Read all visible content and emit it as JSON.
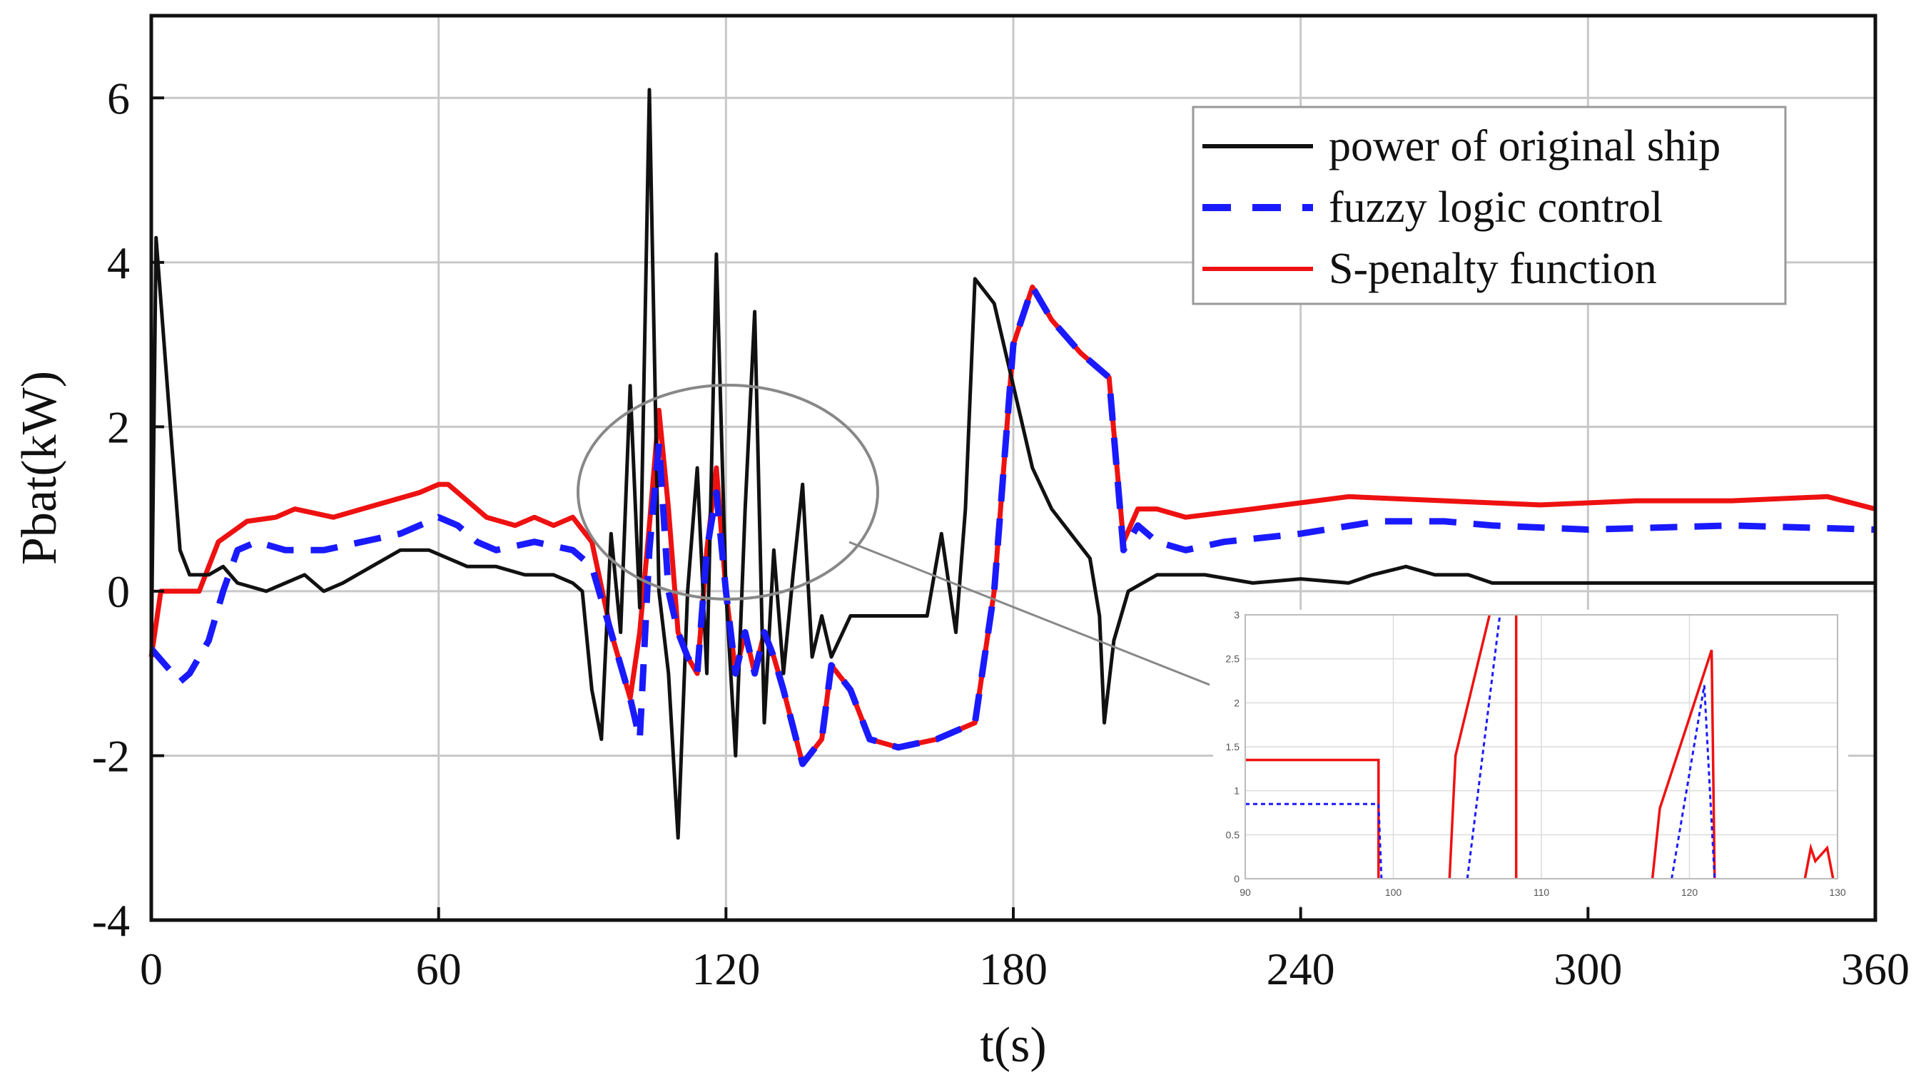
{
  "chart_data": [
    {
      "type": "line",
      "xlabel": "t(s)",
      "ylabel": "Pbat(kW)",
      "xlim": [
        0,
        360
      ],
      "ylim": [
        -4,
        7
      ],
      "xticks": [
        "0",
        "60",
        "120",
        "180",
        "240",
        "300",
        "360"
      ],
      "yticks": [
        "-4",
        "-2",
        "0",
        "2",
        "4",
        "6"
      ],
      "grid": true,
      "legend_position": "top-right",
      "series": [
        {
          "name": "power of original ship",
          "color": "#111111",
          "style": "solid",
          "points": [
            [
              0,
              -0.8
            ],
            [
              1,
              4.3
            ],
            [
              4,
              2.0
            ],
            [
              6,
              0.5
            ],
            [
              8,
              0.2
            ],
            [
              12,
              0.2
            ],
            [
              15,
              0.3
            ],
            [
              18,
              0.1
            ],
            [
              24,
              0.0
            ],
            [
              28,
              0.1
            ],
            [
              32,
              0.2
            ],
            [
              36,
              0.0
            ],
            [
              40,
              0.1
            ],
            [
              46,
              0.3
            ],
            [
              52,
              0.5
            ],
            [
              58,
              0.5
            ],
            [
              62,
              0.4
            ],
            [
              66,
              0.3
            ],
            [
              72,
              0.3
            ],
            [
              78,
              0.2
            ],
            [
              84,
              0.2
            ],
            [
              88,
              0.1
            ],
            [
              90,
              0.0
            ],
            [
              92,
              -1.2
            ],
            [
              94,
              -1.8
            ],
            [
              96,
              0.7
            ],
            [
              98,
              -0.5
            ],
            [
              100,
              2.5
            ],
            [
              102,
              -0.2
            ],
            [
              104,
              6.1
            ],
            [
              106,
              0.0
            ],
            [
              108,
              -1.0
            ],
            [
              110,
              -3.0
            ],
            [
              112,
              0.0
            ],
            [
              114,
              1.5
            ],
            [
              116,
              -1.0
            ],
            [
              118,
              4.1
            ],
            [
              120,
              0.0
            ],
            [
              122,
              -2.0
            ],
            [
              124,
              1.0
            ],
            [
              126,
              3.4
            ],
            [
              128,
              -1.6
            ],
            [
              130,
              0.5
            ],
            [
              132,
              -1.0
            ],
            [
              134,
              0.2
            ],
            [
              136,
              1.3
            ],
            [
              138,
              -0.8
            ],
            [
              140,
              -0.3
            ],
            [
              142,
              -0.8
            ],
            [
              146,
              -0.3
            ],
            [
              154,
              -0.3
            ],
            [
              162,
              -0.3
            ],
            [
              165,
              0.7
            ],
            [
              168,
              -0.5
            ],
            [
              170,
              1.0
            ],
            [
              172,
              3.8
            ],
            [
              176,
              3.5
            ],
            [
              180,
              2.5
            ],
            [
              184,
              1.5
            ],
            [
              188,
              1.0
            ],
            [
              192,
              0.7
            ],
            [
              196,
              0.4
            ],
            [
              198,
              -0.3
            ],
            [
              199,
              -1.6
            ],
            [
              201,
              -0.6
            ],
            [
              204,
              0.0
            ],
            [
              210,
              0.2
            ],
            [
              220,
              0.2
            ],
            [
              230,
              0.1
            ],
            [
              240,
              0.15
            ],
            [
              250,
              0.1
            ],
            [
              255,
              0.2
            ],
            [
              262,
              0.3
            ],
            [
              268,
              0.2
            ],
            [
              275,
              0.2
            ],
            [
              280,
              0.1
            ],
            [
              300,
              0.1
            ],
            [
              320,
              0.1
            ],
            [
              340,
              0.1
            ],
            [
              360,
              0.1
            ]
          ]
        },
        {
          "name": "fuzzy logic control",
          "color": "#1a1aff",
          "style": "dashed",
          "points": [
            [
              0,
              -0.7
            ],
            [
              3,
              -0.9
            ],
            [
              6,
              -1.1
            ],
            [
              8,
              -1.0
            ],
            [
              12,
              -0.6
            ],
            [
              15,
              0.0
            ],
            [
              18,
              0.5
            ],
            [
              22,
              0.6
            ],
            [
              28,
              0.5
            ],
            [
              36,
              0.5
            ],
            [
              44,
              0.6
            ],
            [
              52,
              0.7
            ],
            [
              60,
              0.9
            ],
            [
              64,
              0.8
            ],
            [
              68,
              0.6
            ],
            [
              72,
              0.5
            ],
            [
              80,
              0.6
            ],
            [
              88,
              0.5
            ],
            [
              92,
              0.3
            ],
            [
              96,
              -0.5
            ],
            [
              100,
              -1.3
            ],
            [
              102,
              -1.8
            ],
            [
              104,
              0.5
            ],
            [
              106,
              1.8
            ],
            [
              108,
              0.0
            ],
            [
              110,
              -0.5
            ],
            [
              112,
              -0.8
            ],
            [
              114,
              -1.0
            ],
            [
              116,
              0.5
            ],
            [
              118,
              1.2
            ],
            [
              120,
              0.0
            ],
            [
              122,
              -1.0
            ],
            [
              124,
              -0.5
            ],
            [
              126,
              -1.0
            ],
            [
              128,
              -0.5
            ],
            [
              130,
              -0.8
            ],
            [
              132,
              -1.2
            ],
            [
              136,
              -2.1
            ],
            [
              140,
              -1.8
            ],
            [
              142,
              -0.9
            ],
            [
              146,
              -1.2
            ],
            [
              150,
              -1.8
            ],
            [
              156,
              -1.9
            ],
            [
              164,
              -1.8
            ],
            [
              172,
              -1.6
            ],
            [
              176,
              0.0
            ],
            [
              180,
              3.0
            ],
            [
              184,
              3.7
            ],
            [
              188,
              3.3
            ],
            [
              194,
              2.9
            ],
            [
              200,
              2.6
            ],
            [
              203,
              0.5
            ],
            [
              206,
              0.8
            ],
            [
              210,
              0.6
            ],
            [
              216,
              0.5
            ],
            [
              224,
              0.6
            ],
            [
              240,
              0.7
            ],
            [
              256,
              0.85
            ],
            [
              270,
              0.85
            ],
            [
              280,
              0.8
            ],
            [
              300,
              0.75
            ],
            [
              330,
              0.8
            ],
            [
              360,
              0.75
            ]
          ]
        },
        {
          "name": "S-penalty function",
          "color": "#ee1111",
          "style": "solid",
          "points": [
            [
              0,
              -0.8
            ],
            [
              2,
              0.0
            ],
            [
              4,
              0.0
            ],
            [
              10,
              0.0
            ],
            [
              14,
              0.6
            ],
            [
              20,
              0.85
            ],
            [
              26,
              0.9
            ],
            [
              30,
              1.0
            ],
            [
              38,
              0.9
            ],
            [
              44,
              1.0
            ],
            [
              50,
              1.1
            ],
            [
              56,
              1.2
            ],
            [
              60,
              1.3
            ],
            [
              62,
              1.3
            ],
            [
              66,
              1.1
            ],
            [
              70,
              0.9
            ],
            [
              76,
              0.8
            ],
            [
              80,
              0.9
            ],
            [
              84,
              0.8
            ],
            [
              88,
              0.9
            ],
            [
              92,
              0.6
            ],
            [
              96,
              -0.5
            ],
            [
              100,
              -1.3
            ],
            [
              102,
              -0.5
            ],
            [
              104,
              0.8
            ],
            [
              106,
              2.2
            ],
            [
              108,
              1.0
            ],
            [
              110,
              -0.5
            ],
            [
              112,
              -0.8
            ],
            [
              114,
              -1.0
            ],
            [
              116,
              0.5
            ],
            [
              118,
              1.5
            ],
            [
              120,
              0.0
            ],
            [
              122,
              -1.0
            ],
            [
              124,
              -0.5
            ],
            [
              126,
              -1.0
            ],
            [
              128,
              -0.5
            ],
            [
              130,
              -0.8
            ],
            [
              132,
              -1.2
            ],
            [
              136,
              -2.1
            ],
            [
              140,
              -1.8
            ],
            [
              142,
              -0.9
            ],
            [
              146,
              -1.2
            ],
            [
              150,
              -1.8
            ],
            [
              156,
              -1.9
            ],
            [
              164,
              -1.8
            ],
            [
              172,
              -1.6
            ],
            [
              176,
              0.0
            ],
            [
              180,
              3.0
            ],
            [
              184,
              3.7
            ],
            [
              188,
              3.3
            ],
            [
              194,
              2.9
            ],
            [
              200,
              2.6
            ],
            [
              203,
              0.6
            ],
            [
              206,
              1.0
            ],
            [
              210,
              1.0
            ],
            [
              216,
              0.9
            ],
            [
              230,
              1.0
            ],
            [
              250,
              1.15
            ],
            [
              270,
              1.1
            ],
            [
              290,
              1.05
            ],
            [
              310,
              1.1
            ],
            [
              330,
              1.1
            ],
            [
              350,
              1.15
            ],
            [
              360,
              1.0
            ]
          ]
        }
      ]
    },
    {
      "type": "line",
      "title": "",
      "xlim": [
        90,
        130
      ],
      "ylim": [
        0,
        3
      ],
      "xticks": [
        "90",
        "100",
        "110",
        "120",
        "130"
      ],
      "yticks": [
        "0",
        "0.5",
        "1",
        "1.5",
        "2",
        "2.5",
        "3"
      ],
      "grid": true,
      "series": [
        {
          "name": "S-penalty function",
          "color": "#ee1111",
          "style": "solid",
          "segments": [
            [
              [
                90,
                1.35
              ],
              [
                99,
                1.35
              ],
              [
                99,
                0
              ]
            ],
            [
              [
                103.8,
                0
              ],
              [
                104.2,
                1.4
              ],
              [
                106.5,
                3.0
              ]
            ],
            [
              [
                108.3,
                3.0
              ],
              [
                108.3,
                0
              ]
            ],
            [
              [
                117.5,
                0
              ],
              [
                118,
                0.8
              ],
              [
                121.5,
                2.6
              ],
              [
                121.7,
                0
              ]
            ],
            [
              [
                127.8,
                0
              ],
              [
                128.2,
                0.35
              ],
              [
                128.5,
                0.2
              ],
              [
                129.3,
                0.35
              ],
              [
                129.7,
                0
              ]
            ]
          ]
        },
        {
          "name": "fuzzy logic control",
          "color": "#1a1aff",
          "style": "dashed",
          "segments": [
            [
              [
                90,
                0.85
              ],
              [
                99,
                0.85
              ],
              [
                99.2,
                0
              ]
            ],
            [
              [
                105,
                0
              ],
              [
                107.2,
                3.0
              ]
            ],
            [
              [
                118.8,
                0
              ],
              [
                121,
                2.2
              ],
              [
                121.7,
                0
              ]
            ]
          ]
        }
      ]
    }
  ]
}
